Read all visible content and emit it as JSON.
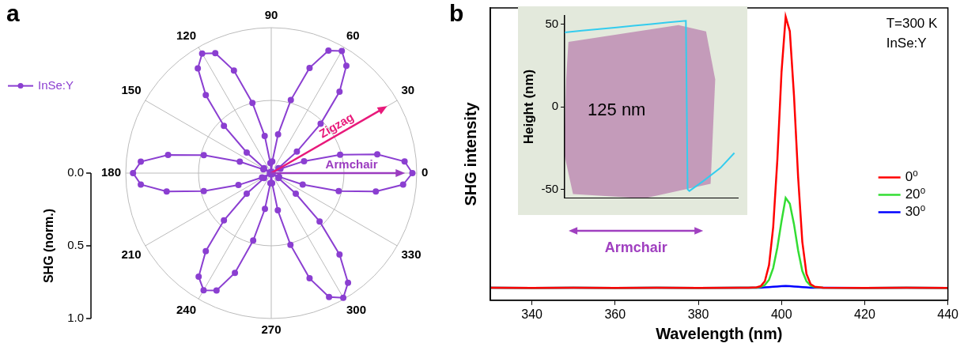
{
  "chart_data": [
    {
      "panel": "a",
      "type": "polar",
      "x": [
        0,
        5,
        10,
        15,
        20,
        25,
        30,
        35,
        40,
        45,
        50,
        55,
        60,
        65,
        70,
        75,
        80,
        85,
        90,
        95,
        100,
        105,
        110,
        115,
        120,
        125,
        130,
        135,
        140,
        145,
        150,
        155,
        160,
        165,
        170,
        175,
        180,
        185,
        190,
        195,
        200,
        205,
        210,
        215,
        220,
        225,
        230,
        235,
        240,
        245,
        250,
        255,
        260,
        265,
        270,
        275,
        280,
        285,
        290,
        295,
        300,
        305,
        310,
        315,
        320,
        325,
        330,
        335,
        340,
        345,
        350,
        355
      ],
      "xticks": [
        0,
        30,
        60,
        90,
        120,
        150,
        180,
        210,
        240,
        270,
        300,
        330
      ],
      "ylim": [
        0,
        1
      ],
      "yticks": [
        {
          "value": 0,
          "label": "0.0"
        },
        {
          "value": 0.5,
          "label": "0.5"
        },
        {
          "value": 1,
          "label": "1.0"
        }
      ],
      "y_label": "SHG (norm.)",
      "grid": true,
      "legend": "left",
      "series": [
        {
          "name": "InSe:Y",
          "color": "#8b3fd1",
          "marker": "circle",
          "line_style": "solid",
          "values": [
            0.97,
            0.92,
            0.74,
            0.49,
            0.24,
            0.07,
            0.01,
            0.06,
            0.23,
            0.48,
            0.73,
            0.9,
            0.97,
            0.93,
            0.77,
            0.52,
            0.27,
            0.08,
            0.01,
            0.07,
            0.26,
            0.5,
            0.75,
            0.91,
            0.95,
            0.88,
            0.7,
            0.46,
            0.22,
            0.06,
            0.01,
            0.06,
            0.23,
            0.48,
            0.72,
            0.9,
            0.95,
            0.9,
            0.73,
            0.48,
            0.24,
            0.07,
            0.01,
            0.06,
            0.22,
            0.46,
            0.7,
            0.87,
            0.93,
            0.89,
            0.73,
            0.48,
            0.25,
            0.07,
            0.01,
            0.07,
            0.26,
            0.51,
            0.77,
            0.94,
            0.99,
            0.92,
            0.73,
            0.47,
            0.22,
            0.06,
            0.01,
            0.06,
            0.23,
            0.48,
            0.73,
            0.91
          ]
        }
      ],
      "annotations": [
        {
          "text": "Zigzag",
          "angle": 30,
          "color": "#e8197a"
        },
        {
          "text": "Armchair",
          "angle": 0,
          "color": "#9b3cc0"
        }
      ]
    },
    {
      "panel": "b",
      "type": "line",
      "x": [
        330,
        340,
        350,
        360,
        370,
        380,
        390,
        392,
        394,
        395,
        396,
        397,
        398,
        399,
        400,
        401,
        402,
        403,
        404,
        405,
        406,
        407,
        408,
        410,
        420,
        430,
        440
      ],
      "xlim": [
        330,
        440
      ],
      "xticks": [
        340,
        360,
        380,
        400,
        420,
        440
      ],
      "ylim": [
        0,
        100
      ],
      "x_label": "Wavelength (nm)",
      "y_label": "SHG intensity",
      "tick_labels": "x",
      "grid": false,
      "legend": "right",
      "annotations": [
        {
          "text": "T=300 K"
        },
        {
          "text": "InSe:Y"
        }
      ],
      "series": [
        {
          "name": "0⁰",
          "color": "#ff0000",
          "line_style": "solid",
          "values": [
            4.3,
            4.2,
            4.3,
            4.2,
            4.3,
            4.2,
            4.3,
            4.3,
            4.4,
            4.8,
            6.5,
            12,
            25,
            48,
            78,
            97,
            92,
            70,
            42,
            20,
            9,
            5.5,
            4.6,
            4.3,
            4.2,
            4.3,
            4.2
          ]
        },
        {
          "name": "20⁰",
          "color": "#33dd33",
          "line_style": "solid",
          "values": [
            4.3,
            4.2,
            4.3,
            4.2,
            4.3,
            4.2,
            4.3,
            4.3,
            4.3,
            4.5,
            5.2,
            7,
            11,
            18,
            27,
            35,
            33,
            26,
            17,
            10,
            6.5,
            5,
            4.5,
            4.3,
            4.2,
            4.3,
            4.2
          ]
        },
        {
          "name": "30⁰",
          "color": "#0000ff",
          "line_style": "solid",
          "values": [
            4.3,
            4.2,
            4.3,
            4.2,
            4.3,
            4.2,
            4.3,
            4.3,
            4.3,
            4.3,
            4.4,
            4.5,
            4.6,
            4.7,
            4.8,
            4.9,
            4.8,
            4.7,
            4.6,
            4.5,
            4.4,
            4.3,
            4.3,
            4.3,
            4.2,
            4.3,
            4.2
          ]
        }
      ],
      "inset": {
        "type": "line",
        "y_label": "Height (nm)",
        "x": [
          0,
          10,
          20,
          30,
          40,
          50,
          60,
          70,
          71,
          72,
          80,
          90,
          98
        ],
        "values": [
          45,
          46,
          47,
          48,
          49,
          50,
          51,
          52,
          -50,
          -51,
          -45,
          -37,
          -28
        ],
        "color": "#33ccee",
        "xlim": [
          0,
          100
        ],
        "ylim": [
          -55,
          55
        ],
        "yticks": [
          50,
          0,
          -50
        ],
        "tick_labels": "y",
        "annotations": [
          {
            "text": "125 nm"
          },
          {
            "text": "Armchair",
            "color": "#a040c0"
          }
        ]
      }
    }
  ]
}
